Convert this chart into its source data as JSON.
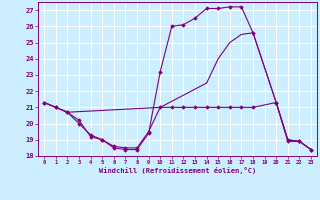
{
  "background_color": "#cceeff",
  "grid_color": "#ffffff",
  "line_color": "#800080",
  "xlabel": "Windchill (Refroidissement éolien,°C)",
  "xlim": [
    -0.5,
    23.5
  ],
  "ylim": [
    18,
    27.5
  ],
  "yticks": [
    18,
    19,
    20,
    21,
    22,
    23,
    24,
    25,
    26,
    27
  ],
  "xticks": [
    0,
    1,
    2,
    3,
    4,
    5,
    6,
    7,
    8,
    9,
    10,
    11,
    12,
    13,
    14,
    15,
    16,
    17,
    18,
    19,
    20,
    21,
    22,
    23
  ],
  "series": [
    {
      "x": [
        0,
        1,
        2,
        3,
        4,
        5,
        6,
        7,
        8,
        9,
        10,
        11,
        12,
        13,
        14,
        15,
        16,
        17,
        18,
        20,
        21,
        22,
        23
      ],
      "y": [
        21.3,
        21.0,
        20.7,
        20.0,
        19.3,
        19.0,
        18.5,
        18.4,
        18.4,
        19.4,
        23.2,
        26.0,
        26.1,
        26.5,
        27.1,
        27.1,
        27.2,
        27.2,
        25.6,
        21.3,
        18.9,
        18.9,
        18.4
      ],
      "marker": "D",
      "markersize": 1.8,
      "linewidth": 0.8
    },
    {
      "x": [
        0,
        1,
        2,
        3,
        4,
        5,
        6,
        7,
        8,
        9,
        10,
        11,
        12,
        13,
        14,
        15,
        16,
        17,
        18,
        20,
        21,
        22,
        23
      ],
      "y": [
        21.3,
        21.0,
        20.7,
        20.2,
        19.2,
        19.0,
        18.6,
        18.5,
        18.5,
        19.5,
        21.0,
        21.0,
        21.0,
        21.0,
        21.0,
        21.0,
        21.0,
        21.0,
        21.0,
        21.3,
        19.0,
        18.9,
        18.4
      ],
      "marker": "D",
      "markersize": 1.8,
      "linewidth": 0.8
    },
    {
      "x": [
        0,
        1,
        2,
        10,
        14,
        15,
        16,
        17,
        18,
        20,
        21,
        22,
        23
      ],
      "y": [
        21.3,
        21.0,
        20.7,
        21.0,
        22.5,
        24.0,
        25.0,
        25.5,
        25.6,
        21.3,
        19.0,
        18.9,
        18.4
      ],
      "marker": null,
      "markersize": 0,
      "linewidth": 0.8
    }
  ]
}
